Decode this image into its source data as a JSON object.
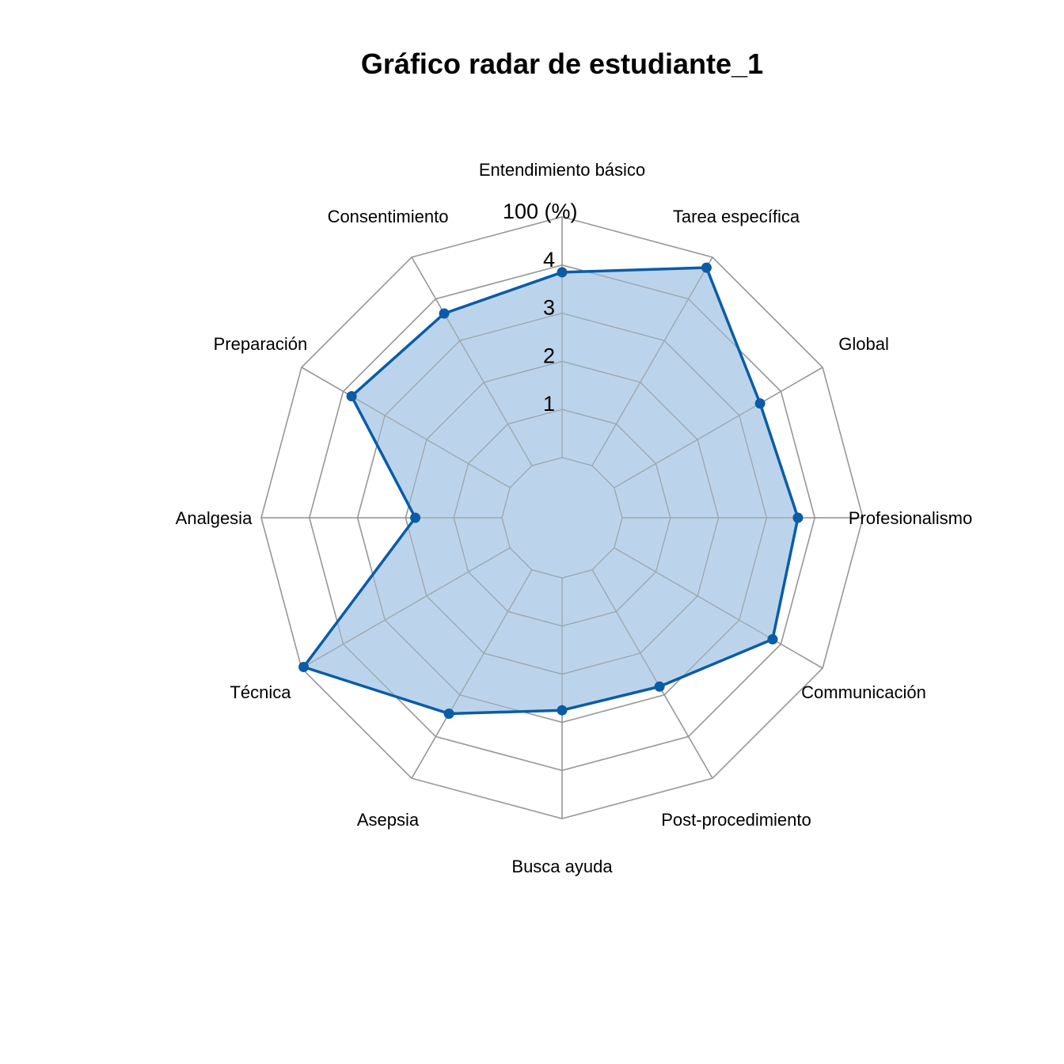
{
  "chart_data": {
    "type": "radar",
    "title": "Gráfico radar de estudiante_1",
    "axes": [
      "Entendimiento básico",
      "Tarea específica",
      "Global",
      "Profesionalismo",
      "Communicación",
      "Post-procedimiento",
      "Busca ayuda",
      "Asepsia",
      "Técnica",
      "Analgesia",
      "Preparación",
      "Consentimiento"
    ],
    "range": [
      0,
      5
    ],
    "center_offset": 1,
    "tick_values": [
      1,
      2,
      3,
      4
    ],
    "tick_labels": [
      "1",
      "2",
      "3",
      "4",
      "100 (%)"
    ],
    "series": [
      {
        "values": [
          3.85,
          4.75,
          3.5,
          3.65,
          3.8,
          2.8,
          2.75,
          3.45,
          4.95,
          1.8,
          3.8,
          3.65
        ]
      }
    ],
    "grid": true,
    "colors": {
      "line": "#0a5ca8",
      "fill": "#b8d2ea",
      "grid": "#aaaaaa",
      "text": "#000000"
    }
  }
}
